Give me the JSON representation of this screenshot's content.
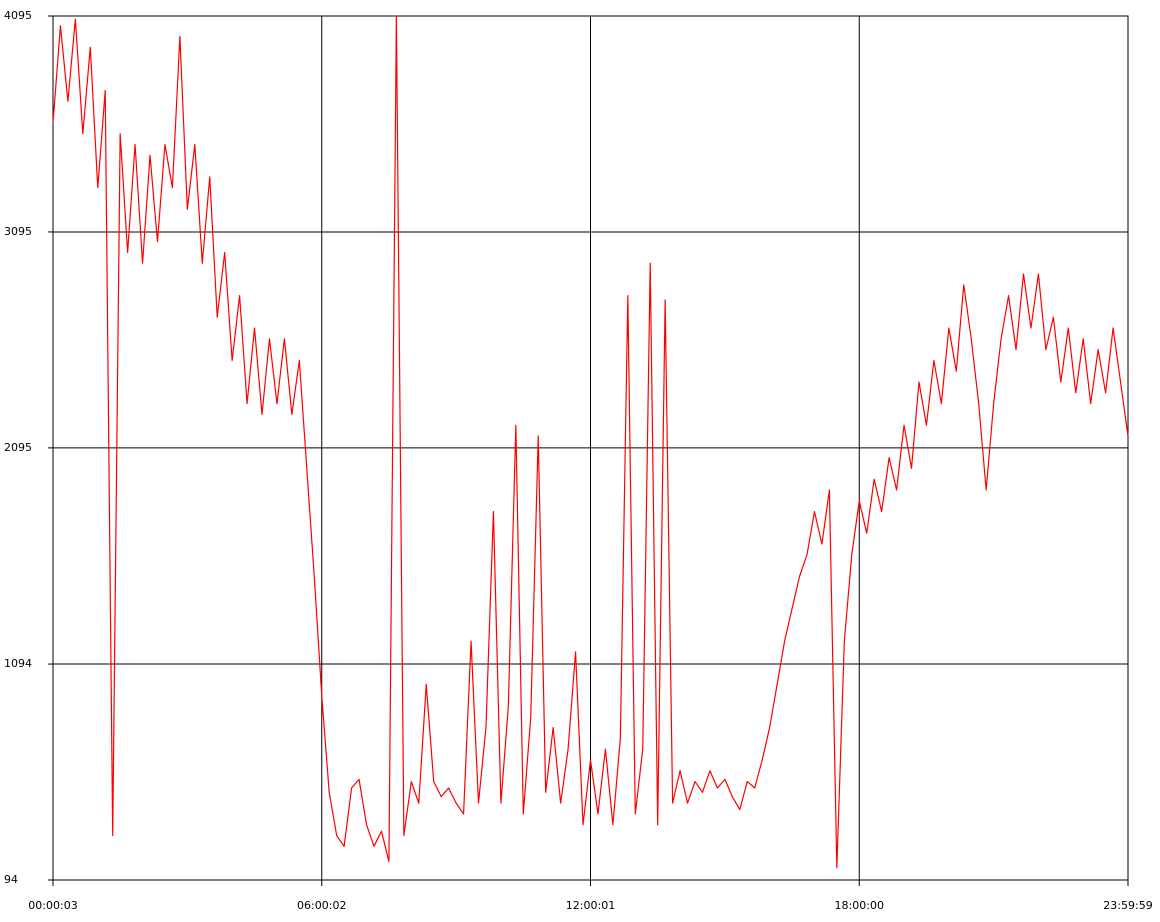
{
  "chart_data": {
    "type": "line",
    "x": [
      3,
      600,
      1200,
      1800,
      2400,
      3000,
      3600,
      4200,
      4800,
      5400,
      6000,
      6600,
      7200,
      7800,
      8400,
      9000,
      9600,
      10200,
      10800,
      11400,
      12000,
      12600,
      13200,
      13800,
      14400,
      15000,
      15600,
      16200,
      16800,
      17400,
      18000,
      18600,
      19200,
      19800,
      20400,
      21000,
      21600,
      22200,
      22800,
      23400,
      24000,
      24600,
      25200,
      25800,
      26400,
      27000,
      27600,
      28200,
      28800,
      29400,
      30000,
      30600,
      31200,
      31800,
      32400,
      33000,
      33600,
      34200,
      34800,
      35400,
      36000,
      36600,
      37200,
      37800,
      38400,
      39000,
      39600,
      40200,
      40800,
      41400,
      42000,
      42600,
      43200,
      43800,
      44400,
      45000,
      45600,
      46200,
      46800,
      47400,
      48000,
      48600,
      49200,
      49800,
      50400,
      51000,
      51600,
      52200,
      52800,
      53400,
      54000,
      54600,
      55200,
      55800,
      56400,
      57000,
      57600,
      58200,
      58800,
      59400,
      60000,
      60600,
      61200,
      61800,
      62400,
      63000,
      63600,
      64200,
      64800,
      65400,
      66000,
      66600,
      67200,
      67800,
      68400,
      69000,
      69600,
      70200,
      70800,
      71400,
      72000,
      72600,
      73200,
      73800,
      74400,
      75000,
      75600,
      76200,
      76800,
      77400,
      78000,
      78600,
      79200,
      79800,
      80400,
      81000,
      81600,
      82200,
      82800,
      83400,
      84000,
      84600,
      85200,
      85800,
      86399
    ],
    "series": [
      {
        "color": "#ff0000",
        "values": [
          3600,
          4050,
          3700,
          4080,
          3550,
          3950,
          3300,
          3750,
          300,
          3550,
          3000,
          3500,
          2950,
          3450,
          3050,
          3500,
          3300,
          4000,
          3200,
          3500,
          2950,
          3350,
          2700,
          3000,
          2500,
          2800,
          2300,
          2650,
          2250,
          2600,
          2300,
          2600,
          2250,
          2500,
          2000,
          1500,
          950,
          500,
          300,
          250,
          520,
          560,
          350,
          250,
          320,
          180,
          4095,
          300,
          550,
          450,
          1000,
          550,
          480,
          520,
          450,
          400,
          1200,
          450,
          800,
          1800,
          450,
          900,
          2200,
          400,
          850,
          2150,
          500,
          800,
          450,
          700,
          1150,
          350,
          650,
          400,
          700,
          350,
          750,
          2800,
          400,
          700,
          2950,
          350,
          2780,
          450,
          600,
          450,
          550,
          500,
          600,
          520,
          560,
          480,
          420,
          550,
          520,
          650,
          800,
          1000,
          1200,
          1350,
          1500,
          1600,
          1800,
          1650,
          1900,
          150,
          1200,
          1600,
          1850,
          1700,
          1950,
          1800,
          2050,
          1900,
          2200,
          2000,
          2400,
          2200,
          2500,
          2300,
          2650,
          2450,
          2850,
          2600,
          2300,
          1900,
          2300,
          2600,
          2800,
          2550,
          2900,
          2650,
          2900,
          2550,
          2700,
          2400,
          2650,
          2350,
          2600,
          2300,
          2550,
          2350,
          2650,
          2400,
          2150
        ]
      }
    ],
    "xlim": [
      3,
      86399
    ],
    "xticks": [
      {
        "value": 3,
        "label": "00:00:03"
      },
      {
        "value": 21602,
        "label": "06:00:02"
      },
      {
        "value": 43201,
        "label": "12:00:01"
      },
      {
        "value": 64800,
        "label": "18:00:00"
      },
      {
        "value": 86399,
        "label": "23:59:59"
      }
    ],
    "ylim": [
      94,
      4095
    ],
    "yticks": [
      94,
      1094,
      2095,
      3095,
      4095
    ],
    "grid": true
  }
}
